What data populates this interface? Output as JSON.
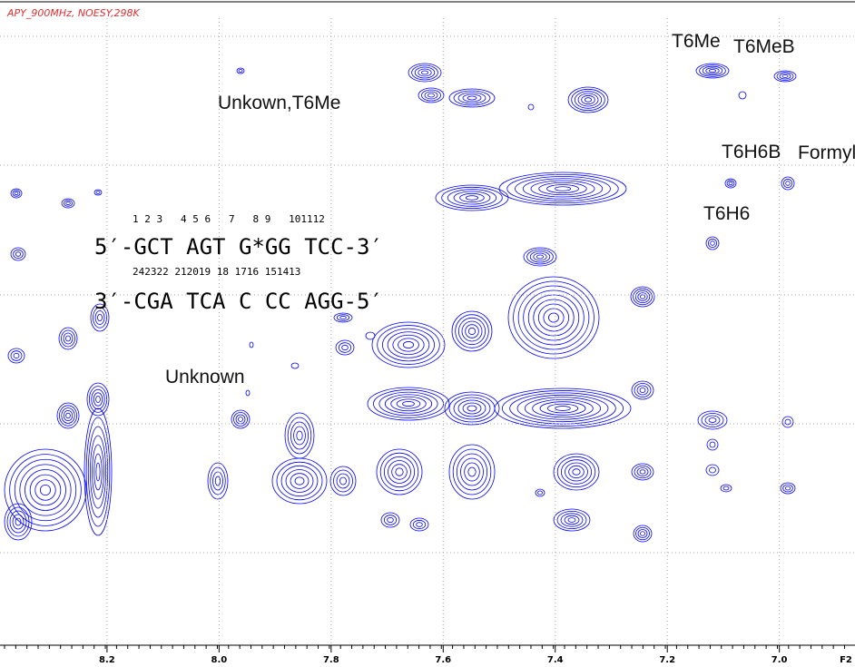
{
  "chart_data": {
    "type": "contour",
    "title": "APY_900MHz, NOESY,298K",
    "x_label": "F2",
    "xlim": [
      8.391,
      6.865
    ],
    "xticks": [
      8.2,
      {
        "value": 8,
        "label": "8.0"
      },
      7.8,
      7.6,
      7.4,
      7.2,
      {
        "value": 7,
        "label": "7.0"
      }
    ],
    "grid": true,
    "color": "#0000ff",
    "annotations": [
      "T6Me",
      "T6MeB",
      "Unkown,T6Me",
      "T6H6B",
      "Formyl",
      "T6H6",
      "Unknown"
    ],
    "sequence": {
      "top_numbers": "1 2 3   4 5 6   7   8 9   101112",
      "top_strand": "5′-GCT AGT G*GG TCC-3′",
      "bottom_numbers": "242322 212019 18 1716 151413",
      "bottom_strand": "3′-CGA TCA C CC AGG-5′"
    }
  }
}
